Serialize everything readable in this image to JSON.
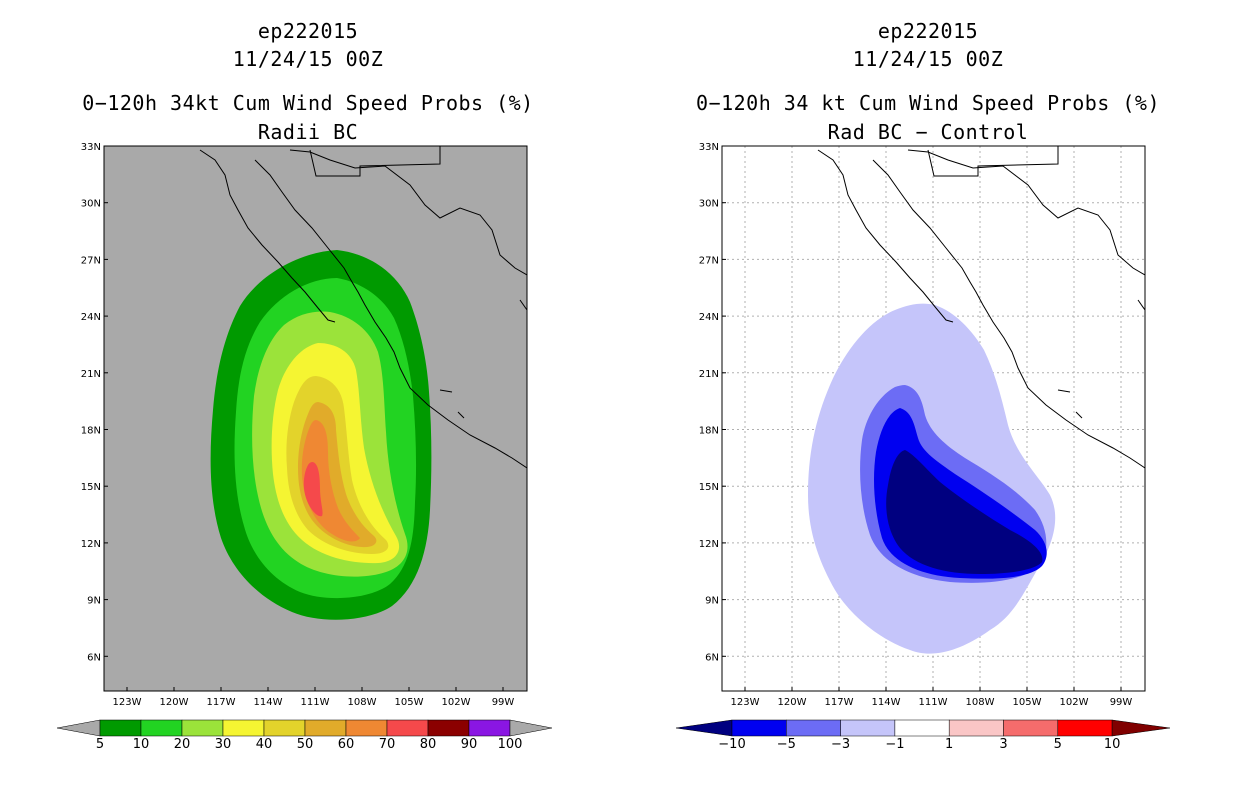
{
  "left_panel": {
    "storm_id": "ep222015",
    "datetime": "11/24/15 00Z",
    "title": "0−120h 34kt Cum Wind Speed Probs (%)",
    "subtitle": "Radii BC",
    "background_color": "#a9a9a9",
    "lat_labels": [
      "33N",
      "30N",
      "27N",
      "24N",
      "21N",
      "18N",
      "15N",
      "12N",
      "9N",
      "6N"
    ],
    "lon_labels": [
      "123W",
      "120W",
      "117W",
      "114W",
      "111W",
      "108W",
      "105W",
      "102W",
      "99W"
    ],
    "colorbar": {
      "labels": [
        "5",
        "10",
        "20",
        "30",
        "40",
        "50",
        "60",
        "70",
        "80",
        "90",
        "100"
      ],
      "colors": [
        "#009a00",
        "#22d322",
        "#9be33a",
        "#f5f532",
        "#e3d32b",
        "#e1ab2a",
        "#ef8833",
        "#f5494b",
        "#8b0000",
        "#8a16e3"
      ],
      "end_color": "#a9a9a9"
    }
  },
  "right_panel": {
    "storm_id": "ep222015",
    "datetime": "11/24/15 00Z",
    "title": "0−120h 34 kt Cum Wind Speed Probs (%)",
    "subtitle": "Rad BC − Control",
    "background_color": "#ffffff",
    "lat_labels": [
      "33N",
      "30N",
      "27N",
      "24N",
      "21N",
      "18N",
      "15N",
      "12N",
      "9N",
      "6N"
    ],
    "lon_labels": [
      "123W",
      "120W",
      "117W",
      "114W",
      "111W",
      "108W",
      "105W",
      "102W",
      "99W"
    ],
    "colorbar": {
      "labels": [
        "−10",
        "−5",
        "−3",
        "−1",
        "1",
        "3",
        "5",
        "10"
      ],
      "colors": [
        "#0000f0",
        "#6c6cf5",
        "#c5c5fa",
        "#ffffff",
        "#fac6c6",
        "#f56c6c",
        "#ff0000"
      ],
      "low_color": "#000080",
      "high_color": "#800000"
    }
  }
}
